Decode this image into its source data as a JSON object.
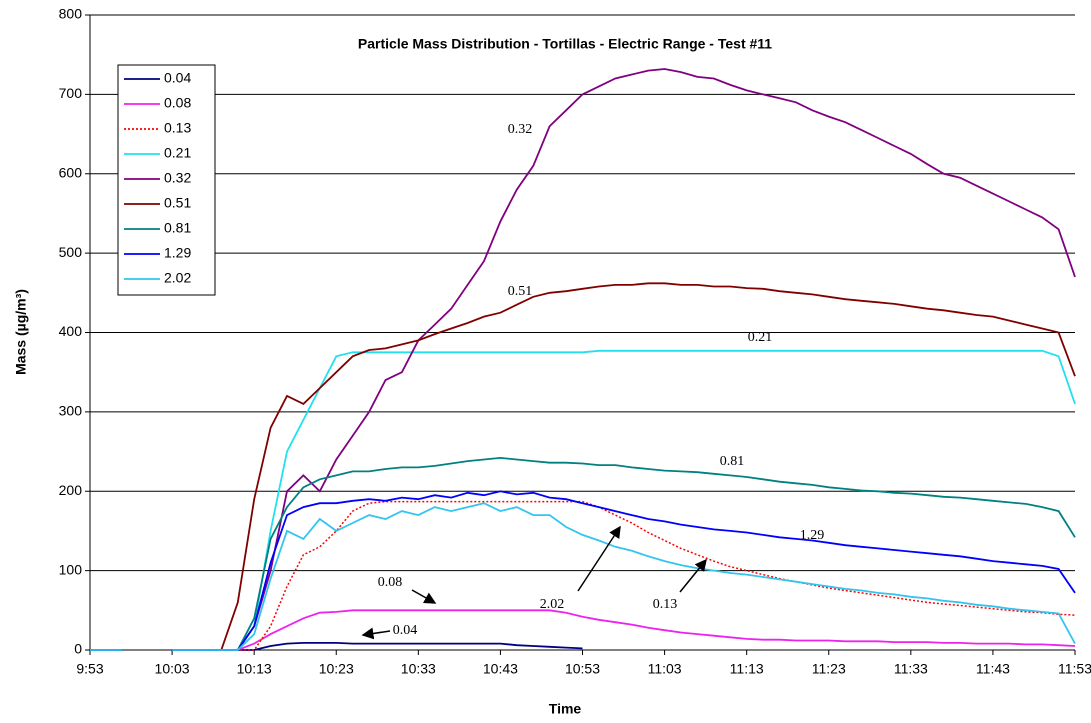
{
  "chart_data": {
    "type": "line",
    "title": "Particle Mass Distribution - Tortillas - Electric Range - Test #11",
    "x_label": "Time",
    "y_label": "Mass (µg/m³)",
    "categories": [
      "9:53",
      null,
      null,
      null,
      null,
      "10:03",
      null,
      null,
      null,
      null,
      "10:13",
      null,
      null,
      null,
      null,
      "10:23",
      null,
      null,
      null,
      null,
      "10:33",
      null,
      null,
      null,
      null,
      "10:43",
      null,
      null,
      null,
      null,
      "10:53",
      null,
      null,
      null,
      null,
      "11:03",
      null,
      null,
      null,
      null,
      "11:13",
      null,
      null,
      null,
      null,
      "11:23",
      null,
      null,
      null,
      null,
      "11:33",
      null,
      null,
      null,
      null,
      "11:43",
      null,
      null,
      null,
      null,
      "11:53"
    ],
    "ylim": [
      0,
      800
    ],
    "yticks": [
      0,
      100,
      200,
      300,
      400,
      500,
      600,
      700,
      800
    ],
    "grid": true,
    "legend": "upper-left",
    "series": [
      {
        "name": "0.04",
        "color": "#000080",
        "line_style": "solid",
        "values": [
          0,
          0,
          0,
          null,
          null,
          0,
          0,
          0,
          0,
          0,
          0,
          5,
          8,
          9,
          9,
          9,
          8,
          8,
          8,
          8,
          8,
          8,
          8,
          8,
          8,
          8,
          6,
          5,
          4,
          3,
          2,
          null,
          null,
          null,
          null,
          null,
          null,
          null,
          null,
          null,
          null,
          null,
          null,
          null,
          null,
          null,
          null,
          null,
          null,
          null,
          null,
          null,
          null,
          null,
          null,
          null,
          null,
          null,
          null,
          null,
          null
        ]
      },
      {
        "name": "0.08",
        "color": "#ee22ee",
        "line_style": "solid",
        "values": [
          0,
          0,
          0,
          null,
          null,
          0,
          0,
          0,
          0,
          0,
          8,
          20,
          30,
          40,
          47,
          48,
          50,
          50,
          50,
          50,
          50,
          50,
          50,
          50,
          50,
          50,
          50,
          50,
          50,
          47,
          42,
          38,
          35,
          32,
          28,
          25,
          22,
          20,
          18,
          16,
          14,
          13,
          13,
          12,
          12,
          12,
          11,
          11,
          11,
          10,
          10,
          10,
          9,
          9,
          8,
          8,
          8,
          7,
          7,
          6,
          5
        ]
      },
      {
        "name": "0.13",
        "color": "#ff0000",
        "line_style": "dotted",
        "values": [
          0,
          0,
          0,
          null,
          null,
          0,
          0,
          0,
          0,
          0,
          0,
          30,
          80,
          120,
          130,
          150,
          175,
          185,
          187,
          187,
          187,
          187,
          187,
          187,
          187,
          187,
          187,
          187,
          187,
          187,
          187,
          180,
          170,
          160,
          148,
          138,
          128,
          120,
          112,
          105,
          100,
          95,
          90,
          86,
          82,
          78,
          75,
          72,
          69,
          66,
          63,
          60,
          58,
          56,
          54,
          52,
          50,
          48,
          47,
          45,
          44
        ]
      },
      {
        "name": "0.21",
        "color": "#22e0ee",
        "line_style": "solid",
        "values": [
          0,
          0,
          0,
          null,
          null,
          0,
          0,
          0,
          0,
          0,
          30,
          150,
          250,
          290,
          330,
          370,
          375,
          375,
          375,
          375,
          375,
          375,
          375,
          375,
          375,
          375,
          375,
          375,
          375,
          375,
          375,
          377,
          377,
          377,
          377,
          377,
          377,
          377,
          377,
          377,
          377,
          377,
          377,
          377,
          377,
          377,
          377,
          377,
          377,
          377,
          377,
          377,
          377,
          377,
          377,
          377,
          377,
          377,
          377,
          370,
          310
        ]
      },
      {
        "name": "0.32",
        "color": "#800080",
        "line_style": "solid",
        "values": [
          0,
          0,
          0,
          null,
          null,
          0,
          0,
          0,
          0,
          0,
          30,
          100,
          200,
          220,
          200,
          240,
          270,
          300,
          340,
          350,
          390,
          410,
          430,
          460,
          490,
          540,
          580,
          610,
          660,
          680,
          700,
          710,
          720,
          725,
          730,
          732,
          728,
          722,
          720,
          712,
          705,
          700,
          695,
          690,
          680,
          672,
          665,
          655,
          645,
          635,
          625,
          612,
          600,
          595,
          585,
          575,
          565,
          555,
          545,
          530,
          470
        ]
      },
      {
        "name": "0.51",
        "color": "#800000",
        "line_style": "solid",
        "values": [
          0,
          0,
          0,
          null,
          null,
          0,
          0,
          0,
          0,
          60,
          190,
          280,
          320,
          310,
          330,
          350,
          370,
          378,
          380,
          385,
          390,
          398,
          405,
          412,
          420,
          425,
          435,
          445,
          450,
          452,
          455,
          458,
          460,
          460,
          462,
          462,
          460,
          460,
          458,
          458,
          456,
          455,
          452,
          450,
          448,
          445,
          442,
          440,
          438,
          436,
          433,
          430,
          428,
          425,
          422,
          420,
          415,
          410,
          405,
          400,
          345
        ]
      },
      {
        "name": "0.81",
        "color": "#008080",
        "line_style": "solid",
        "values": [
          0,
          0,
          0,
          null,
          null,
          0,
          0,
          0,
          0,
          0,
          40,
          140,
          180,
          205,
          215,
          220,
          225,
          225,
          228,
          230,
          230,
          232,
          235,
          238,
          240,
          242,
          240,
          238,
          236,
          236,
          235,
          233,
          233,
          230,
          228,
          226,
          225,
          224,
          222,
          220,
          218,
          215,
          212,
          210,
          208,
          205,
          203,
          201,
          200,
          198,
          197,
          195,
          193,
          192,
          190,
          188,
          186,
          184,
          180,
          175,
          142
        ]
      },
      {
        "name": "1.29",
        "color": "#0000ff",
        "line_style": "solid",
        "values": [
          0,
          0,
          0,
          null,
          null,
          0,
          0,
          0,
          0,
          0,
          30,
          110,
          170,
          180,
          185,
          185,
          188,
          190,
          188,
          192,
          190,
          195,
          192,
          198,
          195,
          200,
          196,
          198,
          192,
          190,
          185,
          180,
          175,
          170,
          165,
          162,
          158,
          155,
          152,
          150,
          148,
          145,
          142,
          140,
          138,
          135,
          132,
          130,
          128,
          126,
          124,
          122,
          120,
          118,
          115,
          112,
          110,
          108,
          106,
          102,
          72
        ]
      },
      {
        "name": "2.02",
        "color": "#33c4f0",
        "line_style": "solid",
        "values": [
          0,
          0,
          0,
          null,
          null,
          0,
          0,
          0,
          0,
          0,
          20,
          90,
          150,
          140,
          165,
          150,
          160,
          170,
          165,
          175,
          170,
          180,
          175,
          180,
          185,
          175,
          180,
          170,
          170,
          155,
          145,
          138,
          130,
          125,
          118,
          112,
          107,
          103,
          100,
          97,
          95,
          92,
          89,
          86,
          83,
          80,
          77,
          75,
          72,
          70,
          67,
          65,
          62,
          60,
          57,
          55,
          52,
          50,
          48,
          46,
          8
        ]
      }
    ],
    "annotations": [
      {
        "text": "0.32"
      },
      {
        "text": "0.51"
      },
      {
        "text": "0.21"
      },
      {
        "text": "0.81"
      },
      {
        "text": "1.29"
      },
      {
        "text": "0.08"
      },
      {
        "text": "0.04"
      },
      {
        "text": "2.02"
      },
      {
        "text": "0.13"
      }
    ]
  }
}
